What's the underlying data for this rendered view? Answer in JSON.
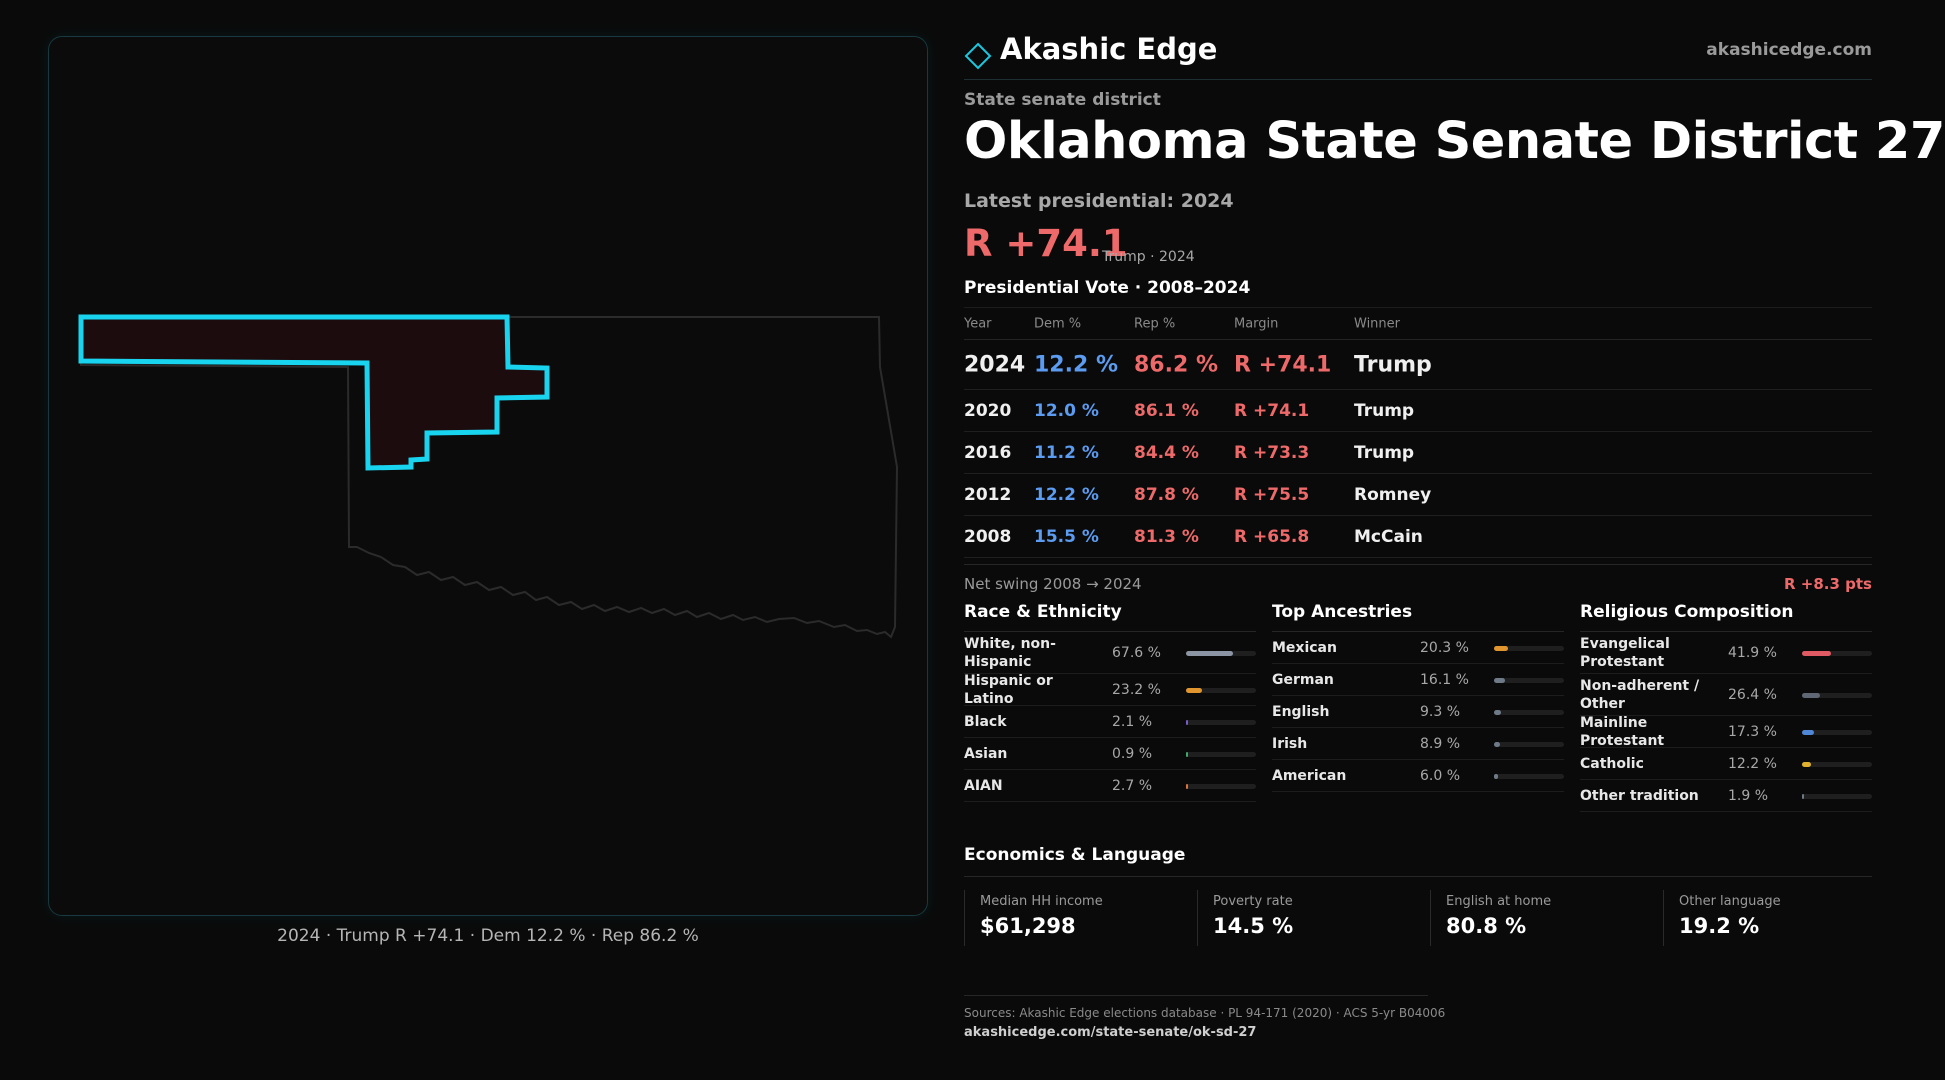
{
  "brand": {
    "name": "Akashic Edge",
    "url": "akashicedge.com"
  },
  "eyebrow": "State senate district",
  "title": "Oklahoma State Senate District 27",
  "latest_label": "Latest presidential: 2024",
  "headline_margin": "R +74.1",
  "headline_sub": "Trump · 2024",
  "presidential_title": "Presidential Vote · 2008–2024",
  "table": {
    "headers": {
      "year": "Year",
      "dem": "Dem %",
      "rep": "Rep %",
      "margin": "Margin",
      "winner": "Winner"
    },
    "rows": [
      {
        "year": "2024",
        "dem": "12.2 %",
        "rep": "86.2 %",
        "margin": "R +74.1",
        "winner": "Trump"
      },
      {
        "year": "2020",
        "dem": "12.0 %",
        "rep": "86.1 %",
        "margin": "R +74.1",
        "winner": "Trump"
      },
      {
        "year": "2016",
        "dem": "11.2 %",
        "rep": "84.4 %",
        "margin": "R +73.3",
        "winner": "Trump"
      },
      {
        "year": "2012",
        "dem": "12.2 %",
        "rep": "87.8 %",
        "margin": "R +75.5",
        "winner": "Romney"
      },
      {
        "year": "2008",
        "dem": "15.5 %",
        "rep": "81.3 %",
        "margin": "R +65.8",
        "winner": "McCain"
      }
    ]
  },
  "swing": {
    "label": "Net swing 2008 → 2024",
    "value": "R +8.3 pts"
  },
  "race": {
    "title": "Race & Ethnicity",
    "items": [
      {
        "label": "White, non-Hispanic",
        "pct": "67.6 %",
        "value": 67.6,
        "color": "#8b95a3"
      },
      {
        "label": "Hispanic or Latino",
        "pct": "23.2 %",
        "value": 23.2,
        "color": "#e0952f"
      },
      {
        "label": "Black",
        "pct": "2.1 %",
        "value": 2.1,
        "color": "#7a5cc7"
      },
      {
        "label": "Asian",
        "pct": "0.9 %",
        "value": 0.9,
        "color": "#3fa86d"
      },
      {
        "label": "AIAN",
        "pct": "2.7 %",
        "value": 2.7,
        "color": "#d9743a"
      }
    ]
  },
  "ancestry": {
    "title": "Top Ancestries",
    "items": [
      {
        "label": "Mexican",
        "pct": "20.3 %",
        "value": 20.3,
        "color": "#e0952f"
      },
      {
        "label": "German",
        "pct": "16.1 %",
        "value": 16.1,
        "color": "#6f7a88"
      },
      {
        "label": "English",
        "pct": "9.3 %",
        "value": 9.3,
        "color": "#6f7a88"
      },
      {
        "label": "Irish",
        "pct": "8.9 %",
        "value": 8.9,
        "color": "#6f7a88"
      },
      {
        "label": "American",
        "pct": "6.0 %",
        "value": 6.0,
        "color": "#6f7a88"
      }
    ]
  },
  "religion": {
    "title": "Religious Composition",
    "items": [
      {
        "label": "Evangelical Protestant",
        "pct": "41.9 %",
        "value": 41.9,
        "color": "#e05a64"
      },
      {
        "label": "Non-adherent / Other",
        "pct": "26.4 %",
        "value": 26.4,
        "color": "#5e6773"
      },
      {
        "label": "Mainline Protestant",
        "pct": "17.3 %",
        "value": 17.3,
        "color": "#4f86d6"
      },
      {
        "label": "Catholic",
        "pct": "12.2 %",
        "value": 12.2,
        "color": "#e0b12f"
      },
      {
        "label": "Other tradition",
        "pct": "1.9 %",
        "value": 1.9,
        "color": "#6f7a88"
      }
    ]
  },
  "economics": {
    "title": "Economics & Language",
    "items": [
      {
        "label": "Median HH income",
        "value": "$61,298"
      },
      {
        "label": "Poverty rate",
        "value": "14.5 %"
      },
      {
        "label": "English at home",
        "value": "80.8 %"
      },
      {
        "label": "Other language",
        "value": "19.2 %"
      }
    ]
  },
  "sources": {
    "text": "Sources: Akashic Edge elections database · PL 94-171 (2020) · ACS 5-yr B04006",
    "url": "akashicedge.com/state-senate/ok-sd-27"
  },
  "map_caption": "2024 · Trump R +74.1 · Dem 12.2 % · Rep 86.2 %",
  "colors": {
    "dem": "#5b9bf0",
    "rep": "#ee6a6a",
    "district_outline": "#19d4ee",
    "district_fill": "#1c0c0e"
  }
}
